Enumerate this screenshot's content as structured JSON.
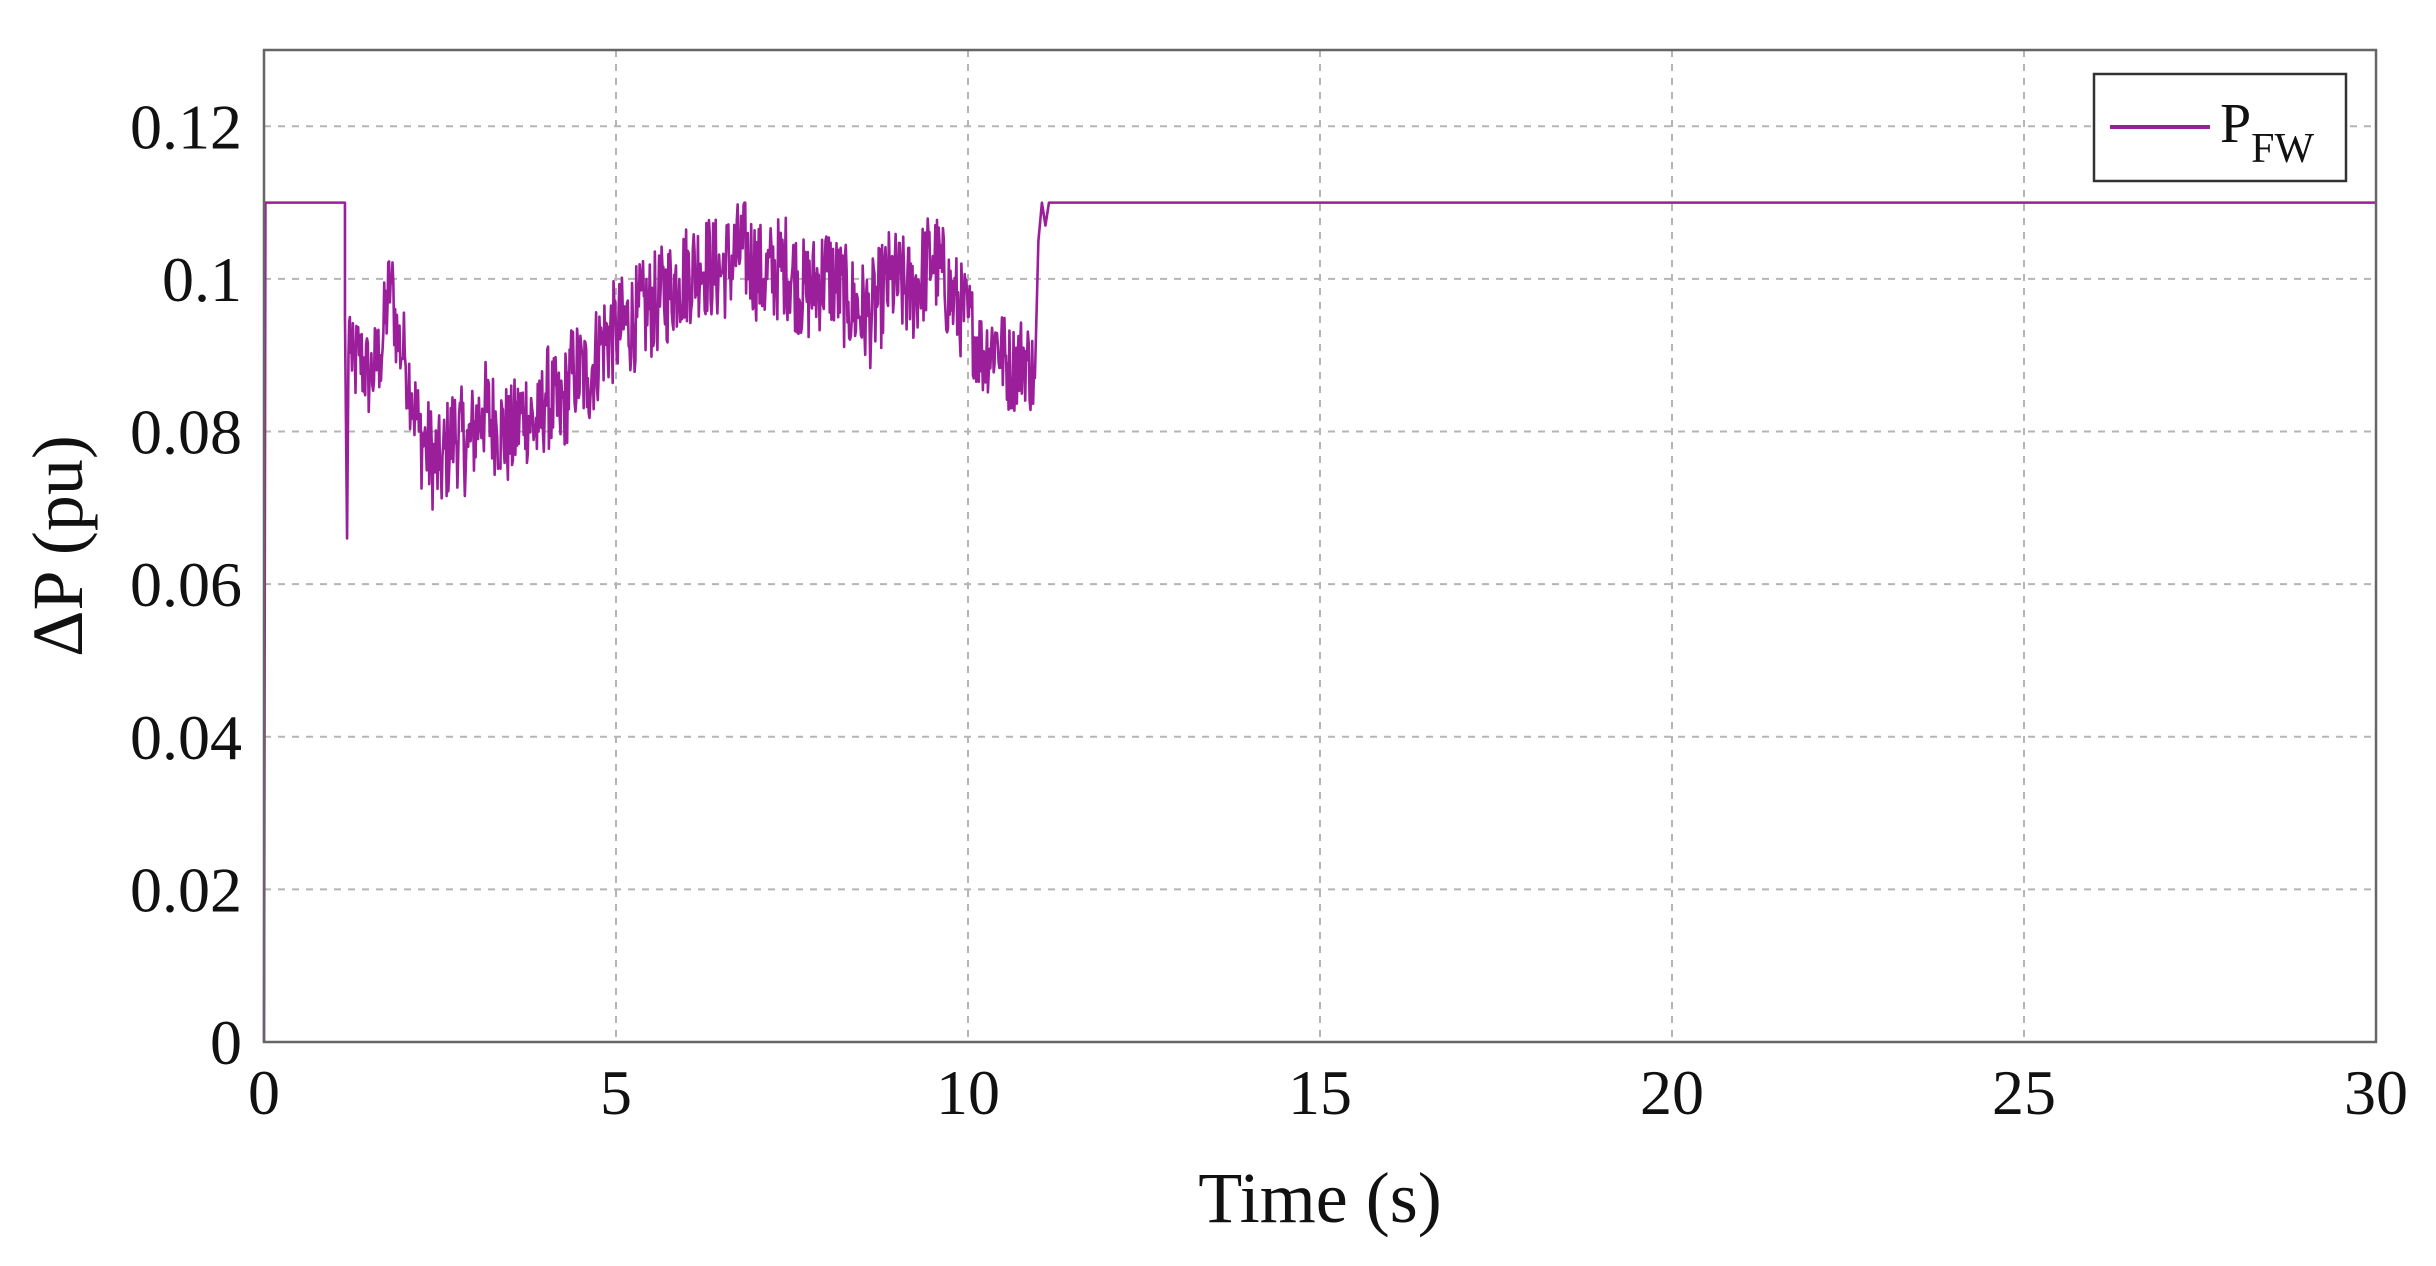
{
  "chart_data": {
    "type": "line",
    "title": "",
    "xlabel": "Time (s)",
    "ylabel": "ΔP (pu)",
    "xlim": [
      0,
      30
    ],
    "ylim": [
      0,
      0.13
    ],
    "xticks": [
      0,
      5,
      10,
      15,
      20,
      25,
      30
    ],
    "xtick_labels": [
      "0",
      "5",
      "10",
      "15",
      "20",
      "25",
      "30"
    ],
    "yticks": [
      0,
      0.02,
      0.04,
      0.06,
      0.08,
      0.1,
      0.12
    ],
    "ytick_labels": [
      "0",
      "0.02",
      "0.04",
      "0.06",
      "0.08",
      "0.1",
      "0.12"
    ],
    "grid": true,
    "legend": {
      "placement": "top-right",
      "entries": [
        {
          "main": "P",
          "sub": "FW"
        }
      ]
    },
    "series": [
      {
        "name": "P_FW",
        "color": "#9b1e9b",
        "x": [
          0,
          0.02,
          1.15,
          1.15,
          1.18,
          1.2,
          1.22,
          1.25,
          1.35,
          1.5,
          1.65,
          1.8,
          1.9,
          2.0,
          2.1,
          2.2,
          2.3,
          2.5,
          2.7,
          2.9,
          3.1,
          3.3,
          3.5,
          3.7,
          3.9,
          4.0,
          4.2,
          4.4,
          4.6,
          4.8,
          5.0,
          5.3,
          5.6,
          5.9,
          6.2,
          6.5,
          6.8,
          7.1,
          7.4,
          7.7,
          8.0,
          8.3,
          8.6,
          8.9,
          9.2,
          9.5,
          9.8,
          10.0,
          10.2,
          10.4,
          10.6,
          10.8,
          10.95,
          11.0,
          11.05,
          11.1,
          11.15,
          30
        ],
        "y": [
          0,
          0.11,
          0.11,
          0.095,
          0.066,
          0.09,
          0.095,
          0.088,
          0.09,
          0.087,
          0.09,
          0.1,
          0.092,
          0.09,
          0.085,
          0.08,
          0.078,
          0.075,
          0.08,
          0.078,
          0.083,
          0.081,
          0.079,
          0.083,
          0.08,
          0.085,
          0.082,
          0.088,
          0.087,
          0.092,
          0.093,
          0.095,
          0.097,
          0.1,
          0.102,
          0.101,
          0.104,
          0.1,
          0.102,
          0.098,
          0.101,
          0.097,
          0.095,
          0.1,
          0.098,
          0.103,
          0.097,
          0.095,
          0.09,
          0.092,
          0.088,
          0.09,
          0.087,
          0.105,
          0.11,
          0.107,
          0.11,
          0.11
        ],
        "noise": [
          0,
          0,
          0,
          0,
          0,
          0.006,
          0.006,
          0.006,
          0.006,
          0.006,
          0.006,
          0.006,
          0.006,
          0.006,
          0.006,
          0.007,
          0.007,
          0.007,
          0.007,
          0.007,
          0.007,
          0.007,
          0.007,
          0.007,
          0.007,
          0.007,
          0.007,
          0.007,
          0.007,
          0.007,
          0.007,
          0.007,
          0.007,
          0.007,
          0.007,
          0.007,
          0.007,
          0.007,
          0.007,
          0.007,
          0.007,
          0.007,
          0.007,
          0.007,
          0.007,
          0.007,
          0.007,
          0.006,
          0.006,
          0.006,
          0.006,
          0.006,
          0.006,
          0,
          0,
          0,
          0,
          0
        ]
      }
    ]
  }
}
